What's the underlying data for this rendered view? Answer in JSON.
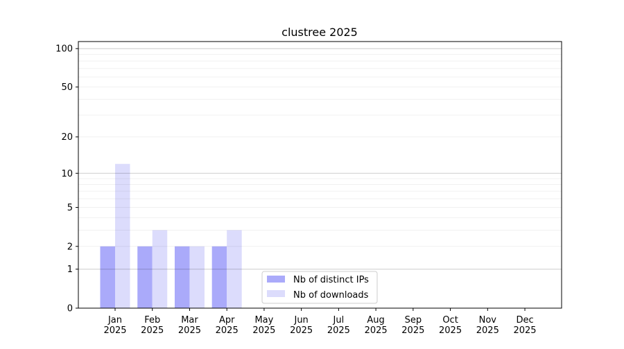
{
  "chart_data": {
    "type": "bar",
    "title": "clustree 2025",
    "xlabel": "",
    "ylabel": "",
    "yscale": "symlog (log10(1+y))",
    "ylim": [
      0,
      116
    ],
    "yticks": [
      0,
      1,
      2,
      5,
      10,
      20,
      50,
      100
    ],
    "grid": true,
    "legend_position": "lower-center",
    "categories": [
      "Jan\n2025",
      "Feb\n2025",
      "Mar\n2025",
      "Apr\n2025",
      "May\n2025",
      "Jun\n2025",
      "Jul\n2025",
      "Aug\n2025",
      "Sep\n2025",
      "Oct\n2025",
      "Nov\n2025",
      "Dec\n2025"
    ],
    "series": [
      {
        "name": "Nb of distinct IPs",
        "color": "#aaaafa",
        "values": [
          2,
          2,
          2,
          2,
          0,
          0,
          0,
          0,
          0,
          0,
          0,
          0
        ]
      },
      {
        "name": "Nb of downloads",
        "color": "#dcdcfc",
        "values": [
          12,
          3,
          2,
          3,
          0,
          0,
          0,
          0,
          0,
          0,
          0,
          0
        ]
      }
    ]
  }
}
